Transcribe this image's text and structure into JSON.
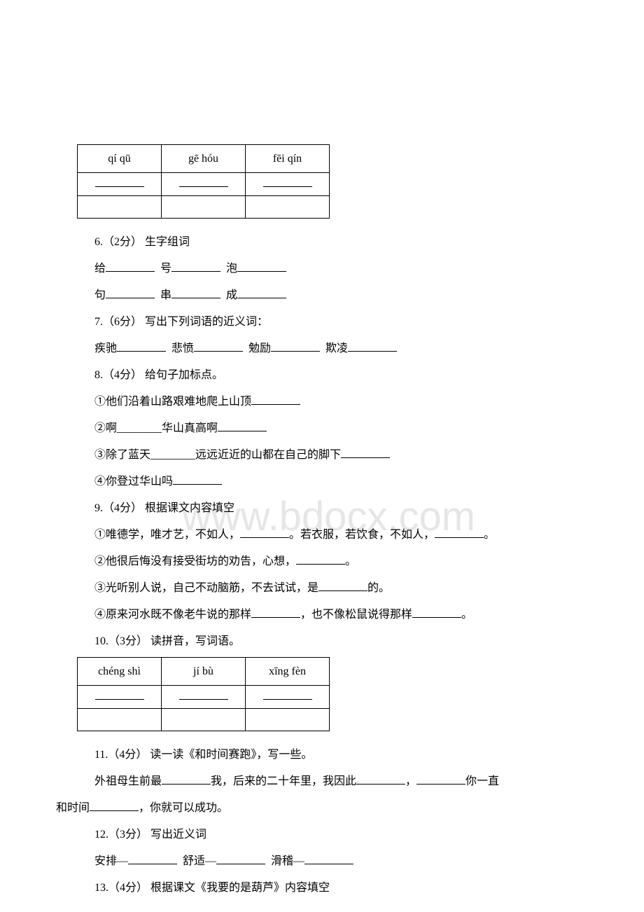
{
  "watermark": "www.bdocx.com",
  "table1": {
    "headers": [
      "qí qū",
      "gē hóu",
      "fēi qín"
    ]
  },
  "q6": {
    "title": "6.（2分） 生字组词",
    "line1_chars": [
      "给",
      "号",
      "泡"
    ],
    "line2_chars": [
      "句",
      "串",
      "成"
    ]
  },
  "q7": {
    "title": "7.（6分） 写出下列词语的近义词：",
    "words": [
      "疾驰",
      "悲愤",
      "勉励",
      "欺凌"
    ]
  },
  "q8": {
    "title": "8.（4分） 给句子加标点。",
    "items": [
      "①他们沿着山路艰难地爬上山顶",
      "②啊________华山真高啊",
      "③除了蓝天________远远近近的山都在自己的脚下",
      "④你登过华山吗"
    ]
  },
  "q9": {
    "title": "9.（4分） 根据课文内容填空",
    "item1_part1": "①唯德学，唯才艺，不如人，",
    "item1_part2": "。若衣服，若饮食，不如人，",
    "item1_part3": "。",
    "item2_part1": "②他很后悔没有接受街坊的劝告，心想，",
    "item2_part2": "。",
    "item3_part1": "③光听别人说，自己不动脑筋，不去试试，是",
    "item3_part2": "的。",
    "item4_part1": "④原来河水既不像老牛说的那样",
    "item4_part2": "，也不像松鼠说得那样",
    "item4_part3": "。"
  },
  "q10": {
    "title": "10.（3分） 读拼音，写词语。"
  },
  "table2": {
    "headers": [
      "chéng shì",
      "jí bù",
      "xīng fèn"
    ]
  },
  "q11": {
    "title": "11.（4分） 读一读《和时间赛跑》，写一些。",
    "text_part1": "外祖母生前最",
    "text_part2": "我，后来的二十年里，我因此",
    "text_part3": "，",
    "text_part4": "你一直和时间",
    "text_part5": "，你就可以成功。"
  },
  "q12": {
    "title": "12.（3分） 写出近义词",
    "words": [
      "安排—",
      "舒适—",
      "滑稽—"
    ]
  },
  "q13": {
    "title": "13.（4分） 根据课文《我要的是葫芦》内容填空"
  }
}
